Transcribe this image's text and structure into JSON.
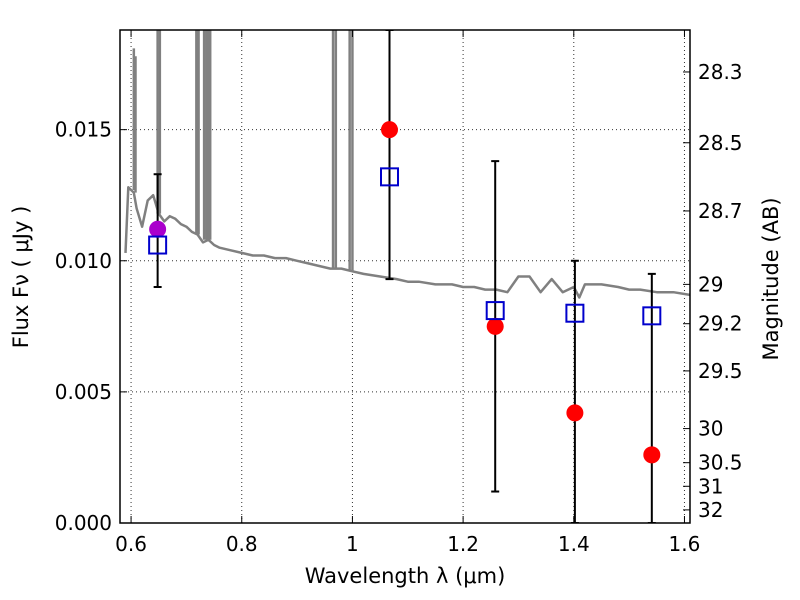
{
  "chart_data": {
    "type": "scatter",
    "title": "",
    "xlabel": "Wavelength  λ (μm)",
    "ylabel": "Flux  Fν  ( μJy )",
    "y2label": "Magnitude (AB)",
    "xlim": [
      0.58,
      1.61
    ],
    "ylim": [
      0.0,
      0.0188
    ],
    "grid": true,
    "x_ticks": [
      0.6,
      0.8,
      1.0,
      1.2,
      1.4,
      1.6
    ],
    "x_tick_labels": [
      "0.6",
      "0.8",
      "1",
      "1.2",
      "1.4",
      "1.6"
    ],
    "y_ticks": [
      0.0,
      0.005,
      0.01,
      0.015
    ],
    "y_tick_labels": [
      "0.000",
      "0.005",
      "0.010",
      "0.015"
    ],
    "y2_ticks": [
      {
        "label": "28.3",
        "flux": 0.0172
      },
      {
        "label": "28.5",
        "flux": 0.0145
      },
      {
        "label": "28.7",
        "flux": 0.0119
      },
      {
        "label": "29",
        "flux": 0.0091
      },
      {
        "label": "29.2",
        "flux": 0.0076
      },
      {
        "label": "29.5",
        "flux": 0.0058
      },
      {
        "label": "30",
        "flux": 0.0036
      },
      {
        "label": "30.5",
        "flux": 0.0023
      },
      {
        "label": "31",
        "flux": 0.0014
      },
      {
        "label": "32",
        "flux": 0.0005
      }
    ],
    "series": [
      {
        "type": "line",
        "color": "#808080",
        "x": [
          0.59,
          0.595,
          0.6,
          0.605,
          0.61,
          0.62,
          0.63,
          0.64,
          0.65,
          0.66,
          0.67,
          0.68,
          0.69,
          0.7,
          0.71,
          0.72,
          0.73,
          0.74,
          0.75,
          0.76,
          0.78,
          0.8,
          0.82,
          0.84,
          0.86,
          0.88,
          0.9,
          0.92,
          0.94,
          0.96,
          0.98,
          1.0,
          1.02,
          1.05,
          1.08,
          1.1,
          1.12,
          1.15,
          1.18,
          1.2,
          1.22,
          1.24,
          1.26,
          1.28,
          1.3,
          1.32,
          1.34,
          1.36,
          1.38,
          1.4,
          1.41,
          1.42,
          1.45,
          1.48,
          1.5,
          1.52,
          1.55,
          1.58,
          1.61
        ],
        "y": [
          0.0103,
          0.0128,
          0.0127,
          0.0126,
          0.012,
          0.0113,
          0.0123,
          0.0125,
          0.0118,
          0.0115,
          0.0117,
          0.0116,
          0.0114,
          0.0113,
          0.0111,
          0.011,
          0.0107,
          0.0108,
          0.0106,
          0.0105,
          0.0104,
          0.0103,
          0.0102,
          0.0102,
          0.0101,
          0.0101,
          0.01,
          0.0099,
          0.0098,
          0.0097,
          0.0097,
          0.0096,
          0.0095,
          0.0094,
          0.0093,
          0.0092,
          0.0092,
          0.0091,
          0.0091,
          0.009,
          0.009,
          0.0089,
          0.0089,
          0.0088,
          0.0094,
          0.0094,
          0.0088,
          0.0093,
          0.0088,
          0.009,
          0.0086,
          0.0091,
          0.0091,
          0.009,
          0.0089,
          0.0089,
          0.0088,
          0.0088,
          0.0087
        ]
      },
      {
        "type": "spike",
        "color": "#808080",
        "segments": [
          {
            "x": 0.605,
            "y0": 0.0127,
            "y1": 0.0181
          },
          {
            "x": 0.608,
            "y0": 0.0126,
            "y1": 0.0178
          },
          {
            "x": 0.648,
            "y0": 0.0118,
            "y1": 0.0188
          },
          {
            "x": 0.652,
            "y0": 0.0118,
            "y1": 0.0188
          },
          {
            "x": 0.718,
            "y0": 0.011,
            "y1": 0.0188
          },
          {
            "x": 0.722,
            "y0": 0.011,
            "y1": 0.0188
          },
          {
            "x": 0.732,
            "y0": 0.0108,
            "y1": 0.0188
          },
          {
            "x": 0.736,
            "y0": 0.0108,
            "y1": 0.0188
          },
          {
            "x": 0.74,
            "y0": 0.0108,
            "y1": 0.0188
          },
          {
            "x": 0.743,
            "y0": 0.0108,
            "y1": 0.0188
          },
          {
            "x": 0.965,
            "y0": 0.0097,
            "y1": 0.0188
          },
          {
            "x": 0.97,
            "y0": 0.0097,
            "y1": 0.0188
          },
          {
            "x": 0.995,
            "y0": 0.0096,
            "y1": 0.0188
          },
          {
            "x": 1.0,
            "y0": 0.0096,
            "y1": 0.0188
          }
        ]
      },
      {
        "type": "errorbar",
        "color": "#000000",
        "points": [
          {
            "x": 0.648,
            "y": 0.0112,
            "ylo": 0.009,
            "yhi": 0.0133
          },
          {
            "x": 1.067,
            "y": 0.015,
            "ylo": 0.0093,
            "yhi": 0.0188
          },
          {
            "x": 1.258,
            "y": 0.0075,
            "ylo": 0.0012,
            "yhi": 0.0138
          },
          {
            "x": 1.402,
            "y": 0.0042,
            "ylo": 0.0,
            "yhi": 0.01
          },
          {
            "x": 1.541,
            "y": 0.0026,
            "ylo": 0.0,
            "yhi": 0.0095
          }
        ]
      },
      {
        "type": "scatter",
        "marker": "circle",
        "color": "#ff0000",
        "x": [
          1.067,
          1.258,
          1.402,
          1.541
        ],
        "y": [
          0.015,
          0.0075,
          0.0042,
          0.0026
        ]
      },
      {
        "type": "scatter",
        "marker": "circle",
        "color": "#aa00cc",
        "x": [
          0.648
        ],
        "y": [
          0.0112
        ]
      },
      {
        "type": "scatter",
        "marker": "open-square",
        "color": "#0000cc",
        "x": [
          0.648,
          1.067,
          1.258,
          1.402,
          1.541
        ],
        "y": [
          0.0106,
          0.0132,
          0.0081,
          0.008,
          0.0079
        ]
      }
    ]
  }
}
